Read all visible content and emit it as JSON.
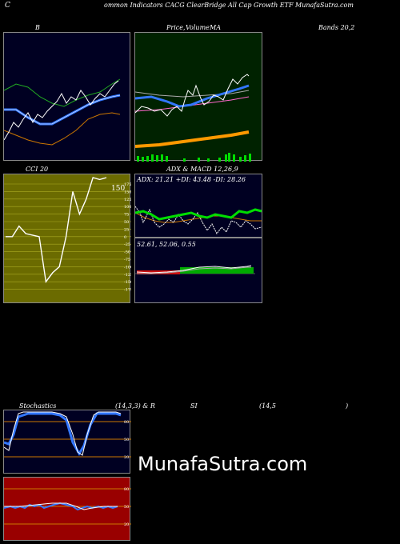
{
  "header": {
    "c": "C",
    "title": "ommon Indicators CACG ClearBridge All Cap Growth ETF MunafaSutra.com"
  },
  "labels": {
    "b": "B",
    "price": "Price,",
    "volume": "Volume",
    "ma": "MA",
    "bands": "Bands 20,2",
    "cci": "CCI 20",
    "adx": "ADX  & MACD 12,26,9",
    "stoch_a": "Stochastics",
    "stoch_b": "(14,3,3) & R",
    "rsi_a": "SI",
    "rsi_b": "(14,5",
    "rsi_c": ")",
    "cci_value": "150",
    "adx_values": "ADX: 21.21  +DI: 43.48  -DI: 28.26",
    "macd_values": "52.61,  52.06,  0.55"
  },
  "colors": {
    "navy": "#000022",
    "green_bg": "#002200",
    "olive": "#6b6b00",
    "red_bg": "#990000",
    "blue": "#3377ff",
    "orange": "#ff9900",
    "green": "#00dd00"
  },
  "watermark": "MunafaSutra.com",
  "chart_data": [
    {
      "type": "line",
      "name": "bollinger",
      "series": [
        {
          "values": [
            40,
            42,
            48,
            44,
            50,
            52,
            50,
            58,
            62,
            60,
            64,
            62,
            66,
            70,
            68,
            72,
            75,
            78,
            80,
            82,
            84,
            83,
            85
          ]
        },
        {
          "values": [
            40,
            42,
            44,
            45,
            46,
            48,
            49,
            50,
            52,
            54,
            56,
            57,
            58,
            60,
            62,
            64,
            66,
            67,
            68,
            70,
            72,
            74,
            76
          ]
        },
        {
          "values": [
            58,
            60,
            62,
            63,
            64,
            65,
            66,
            68,
            70,
            72,
            73,
            74,
            75,
            76,
            78,
            79,
            80,
            81,
            82,
            84,
            86,
            88,
            89
          ]
        },
        {
          "values": [
            22,
            24,
            26,
            27,
            28,
            30,
            32,
            34,
            35,
            36,
            38,
            40,
            42,
            44,
            46,
            50,
            54,
            56,
            58,
            58,
            58,
            58,
            58
          ]
        }
      ]
    },
    {
      "type": "line",
      "name": "price-volume-ma",
      "series": [
        {
          "values": [
            44,
            48,
            46,
            50,
            52,
            48,
            54,
            52,
            58,
            56,
            62,
            60,
            66,
            64,
            70,
            68,
            72,
            74,
            76,
            80,
            84,
            90,
            88
          ]
        },
        {
          "values": [
            55,
            56,
            56,
            57,
            57,
            58,
            58,
            59,
            60,
            61,
            62,
            63,
            64,
            65,
            66,
            67,
            68,
            70,
            71,
            72,
            74,
            75,
            76
          ]
        },
        {
          "values": [
            50,
            51,
            52,
            53,
            54,
            55,
            56,
            57,
            58,
            59,
            60,
            61,
            62,
            63,
            64,
            65,
            66,
            67,
            68,
            69,
            70,
            71,
            72
          ]
        },
        {
          "values": [
            48,
            49,
            49,
            50,
            51,
            52,
            53,
            54,
            55,
            56,
            57,
            58,
            59,
            60,
            61,
            62,
            63,
            64,
            65,
            66,
            67,
            68,
            68
          ]
        }
      ],
      "volume": [
        3,
        2,
        4,
        2,
        3,
        5,
        2,
        3,
        2,
        4,
        3,
        2,
        5,
        3,
        2,
        4,
        3,
        2,
        3,
        6,
        4,
        2,
        3
      ]
    },
    {
      "type": "line",
      "name": "cci",
      "ylabels": [
        "175",
        "150",
        "125",
        "100",
        "75",
        "50",
        "25",
        "0",
        "-25",
        "-50",
        "-75",
        "-100",
        "-125",
        "-150",
        "-175"
      ],
      "values": [
        0,
        0,
        35,
        10,
        5,
        0,
        -150,
        -120,
        -100,
        0,
        150,
        75,
        125,
        225,
        190,
        200
      ]
    },
    {
      "type": "line",
      "name": "adx-macd",
      "series": [
        {
          "values": [
            30,
            25,
            28,
            20,
            32,
            24,
            30,
            26,
            28,
            30,
            22,
            26,
            24,
            30,
            28,
            24
          ]
        },
        {
          "values": [
            20,
            28,
            22,
            30,
            18,
            24,
            20,
            26,
            24,
            18,
            28,
            22,
            26,
            20,
            22,
            26
          ]
        },
        {
          "values": [
            15,
            22,
            12,
            28,
            10,
            30,
            14,
            26,
            12,
            30,
            8,
            28,
            14,
            24,
            18,
            20
          ]
        }
      ],
      "macd": [
        0.5,
        0.7,
        0.9,
        1.0,
        0.8,
        0.6,
        0.4,
        0.5,
        0.7,
        0.9,
        1.1,
        1.0,
        0.8,
        0.9,
        1.0,
        1.1
      ]
    },
    {
      "type": "line",
      "name": "stochastics",
      "ylabels": [
        "80",
        "50",
        "20"
      ],
      "series": [
        {
          "values": [
            60,
            30,
            60,
            95,
            95,
            92,
            95,
            80,
            30,
            30,
            92,
            95,
            93
          ]
        },
        {
          "values": [
            70,
            40,
            50,
            90,
            96,
            94,
            96,
            85,
            40,
            25,
            88,
            96,
            92
          ]
        }
      ]
    },
    {
      "type": "line",
      "name": "rsi",
      "ylabels": [
        "80",
        "50",
        "20"
      ],
      "values": [
        48,
        50,
        49,
        52,
        51,
        53,
        52,
        54,
        50,
        48,
        52,
        51,
        50,
        52,
        51,
        50,
        52,
        53,
        52,
        51
      ]
    }
  ]
}
